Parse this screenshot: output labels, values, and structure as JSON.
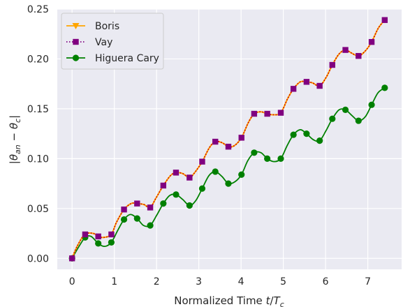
{
  "chart_data": {
    "type": "line",
    "xlabel": "Normalized Time t/T_c",
    "ylabel": "|θ_an − θ_c|",
    "xlim": [
      -0.35,
      7.8
    ],
    "ylim": [
      -0.011,
      0.25
    ],
    "xticks": [
      0,
      1,
      2,
      3,
      4,
      5,
      6,
      7
    ],
    "xtick_labels": [
      "0",
      "1",
      "2",
      "3",
      "4",
      "5",
      "6",
      "7"
    ],
    "yticks": [
      0.0,
      0.05,
      0.1,
      0.15,
      0.2,
      0.25
    ],
    "ytick_labels": [
      "0.00",
      "0.05",
      "0.10",
      "0.15",
      "0.20",
      "0.25"
    ],
    "grid": true,
    "legend_position": "top-left",
    "series": [
      {
        "name": "Boris",
        "color": "#FFA500",
        "line_style": "solid",
        "marker": "triangle-down",
        "x": [
          0,
          0.12,
          0.3,
          0.5,
          0.62,
          0.75,
          0.93,
          1.05,
          1.23,
          1.4,
          1.54,
          1.7,
          1.85,
          1.98,
          2.16,
          2.33,
          2.46,
          2.62,
          2.78,
          2.92,
          3.08,
          3.25,
          3.39,
          3.55,
          3.7,
          3.84,
          4.01,
          4.17,
          4.31,
          4.47,
          4.62,
          4.76,
          4.94,
          5.1,
          5.24,
          5.4,
          5.55,
          5.69,
          5.86,
          6.02,
          6.16,
          6.32,
          6.47,
          6.61,
          6.78,
          6.94,
          7.09,
          7.25,
          7.4
        ],
        "y": [
          0.0,
          0.012,
          0.024,
          0.025,
          0.022,
          0.021,
          0.024,
          0.036,
          0.049,
          0.055,
          0.055,
          0.054,
          0.051,
          0.06,
          0.073,
          0.083,
          0.086,
          0.085,
          0.081,
          0.087,
          0.097,
          0.111,
          0.117,
          0.116,
          0.112,
          0.113,
          0.121,
          0.136,
          0.145,
          0.147,
          0.145,
          0.144,
          0.146,
          0.16,
          0.17,
          0.177,
          0.177,
          0.176,
          0.173,
          0.182,
          0.194,
          0.205,
          0.209,
          0.206,
          0.203,
          0.208,
          0.217,
          0.231,
          0.239
        ]
      },
      {
        "name": "Vay",
        "color": "#800080",
        "line_style": "dotted",
        "marker": "square",
        "x": [
          0,
          0.12,
          0.3,
          0.5,
          0.62,
          0.75,
          0.93,
          1.05,
          1.23,
          1.4,
          1.54,
          1.7,
          1.85,
          1.98,
          2.16,
          2.33,
          2.46,
          2.62,
          2.78,
          2.92,
          3.08,
          3.25,
          3.39,
          3.55,
          3.7,
          3.84,
          4.01,
          4.17,
          4.31,
          4.47,
          4.62,
          4.76,
          4.94,
          5.1,
          5.24,
          5.4,
          5.55,
          5.69,
          5.86,
          6.02,
          6.16,
          6.32,
          6.47,
          6.61,
          6.78,
          6.94,
          7.09,
          7.25,
          7.4
        ],
        "y": [
          0.0,
          0.012,
          0.024,
          0.025,
          0.022,
          0.021,
          0.024,
          0.036,
          0.049,
          0.055,
          0.055,
          0.054,
          0.051,
          0.06,
          0.073,
          0.083,
          0.086,
          0.085,
          0.081,
          0.087,
          0.097,
          0.111,
          0.117,
          0.116,
          0.112,
          0.113,
          0.121,
          0.136,
          0.145,
          0.147,
          0.145,
          0.144,
          0.146,
          0.16,
          0.17,
          0.177,
          0.177,
          0.176,
          0.173,
          0.182,
          0.194,
          0.205,
          0.209,
          0.206,
          0.203,
          0.208,
          0.217,
          0.231,
          0.239
        ],
        "marker_x": [
          0,
          0.31,
          0.62,
          0.93,
          1.23,
          1.54,
          1.85,
          2.16,
          2.46,
          2.78,
          3.08,
          3.39,
          3.7,
          4.01,
          4.31,
          4.62,
          4.94,
          5.24,
          5.55,
          5.86,
          6.16,
          6.47,
          6.78,
          7.09,
          7.4
        ],
        "marker_y": [
          0.0,
          0.024,
          0.022,
          0.024,
          0.049,
          0.055,
          0.051,
          0.073,
          0.086,
          0.081,
          0.097,
          0.117,
          0.112,
          0.121,
          0.145,
          0.145,
          0.146,
          0.17,
          0.177,
          0.173,
          0.194,
          0.209,
          0.203,
          0.217,
          0.239
        ]
      },
      {
        "name": "Higuera Cary",
        "color": "#008000",
        "line_style": "solid",
        "marker": "circle",
        "x": [
          0,
          0.15,
          0.31,
          0.45,
          0.62,
          0.77,
          0.93,
          1.08,
          1.23,
          1.38,
          1.54,
          1.69,
          1.85,
          2.0,
          2.16,
          2.31,
          2.46,
          2.62,
          2.78,
          2.93,
          3.08,
          3.24,
          3.39,
          3.55,
          3.7,
          3.86,
          4.01,
          4.16,
          4.31,
          4.47,
          4.62,
          4.78,
          4.94,
          5.09,
          5.24,
          5.4,
          5.55,
          5.71,
          5.86,
          6.01,
          6.16,
          6.32,
          6.47,
          6.63,
          6.78,
          6.94,
          7.09,
          7.24,
          7.4
        ],
        "y": [
          0.0,
          0.011,
          0.021,
          0.022,
          0.015,
          0.012,
          0.016,
          0.028,
          0.039,
          0.044,
          0.04,
          0.033,
          0.033,
          0.043,
          0.055,
          0.063,
          0.064,
          0.059,
          0.053,
          0.058,
          0.07,
          0.083,
          0.087,
          0.082,
          0.075,
          0.077,
          0.084,
          0.098,
          0.106,
          0.106,
          0.1,
          0.097,
          0.1,
          0.113,
          0.124,
          0.129,
          0.125,
          0.119,
          0.118,
          0.128,
          0.14,
          0.149,
          0.149,
          0.143,
          0.138,
          0.142,
          0.154,
          0.166,
          0.171
        ],
        "marker_x": [
          0,
          0.31,
          0.62,
          0.93,
          1.23,
          1.54,
          1.85,
          2.16,
          2.46,
          2.78,
          3.08,
          3.39,
          3.7,
          4.01,
          4.31,
          4.62,
          4.94,
          5.24,
          5.55,
          5.86,
          6.16,
          6.47,
          6.78,
          7.09,
          7.4
        ],
        "marker_y": [
          0.0,
          0.021,
          0.015,
          0.016,
          0.039,
          0.04,
          0.033,
          0.055,
          0.064,
          0.053,
          0.07,
          0.087,
          0.075,
          0.084,
          0.106,
          0.1,
          0.1,
          0.124,
          0.125,
          0.118,
          0.14,
          0.149,
          0.138,
          0.154,
          0.171
        ]
      }
    ]
  },
  "legend": {
    "items": [
      {
        "label": "Boris",
        "color": "#FFA500",
        "marker": "triangle-down",
        "line_style": "solid"
      },
      {
        "label": "Vay",
        "color": "#800080",
        "marker": "square",
        "line_style": "dotted"
      },
      {
        "label": "Higuera Cary",
        "color": "#008000",
        "marker": "circle",
        "line_style": "solid"
      }
    ]
  },
  "colors": {
    "plot_background": "#EAEAF2",
    "grid": "#FFFFFF",
    "text": "#262626",
    "boris_line": "#FFA500",
    "vay_line_overlay": "#CC0000"
  }
}
